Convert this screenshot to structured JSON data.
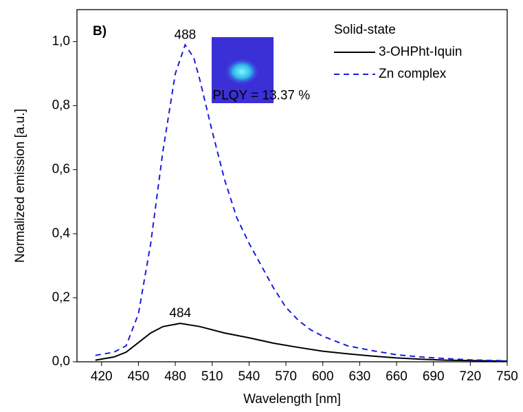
{
  "chart_data": {
    "type": "line",
    "panel_label": "B)",
    "xlabel": "Wavelength [nm]",
    "ylabel": "Normalized emission [a.u.]",
    "legend_title": "Solid-state",
    "legend": "upper right",
    "xlim": [
      400,
      750
    ],
    "xticks": [
      420,
      450,
      480,
      510,
      540,
      570,
      600,
      630,
      660,
      690,
      720,
      750
    ],
    "ylim": [
      0,
      1.1
    ],
    "yticks": [
      {
        "value": 0,
        "label": "0,0"
      },
      {
        "value": 0.2,
        "label": "0,2"
      },
      {
        "value": 0.4,
        "label": "0,4"
      },
      {
        "value": 0.6,
        "label": "0,6"
      },
      {
        "value": 0.8,
        "label": "0,8"
      },
      {
        "value": 1.0,
        "label": "1,0"
      }
    ],
    "series": [
      {
        "name": "3-OHPht-Iquin",
        "color": "#000000",
        "linestyle": "solid",
        "x": [
          415,
          430,
          440,
          450,
          460,
          470,
          484,
          500,
          520,
          540,
          560,
          580,
          600,
          620,
          640,
          660,
          680,
          700,
          750
        ],
        "values": [
          0.005,
          0.015,
          0.03,
          0.06,
          0.09,
          0.11,
          0.12,
          0.11,
          0.09,
          0.075,
          0.058,
          0.045,
          0.033,
          0.025,
          0.018,
          0.012,
          0.008,
          0.005,
          0.002
        ]
      },
      {
        "name": "Zn complex",
        "color": "#1a1adb",
        "linestyle": "dashed",
        "x": [
          415,
          430,
          440,
          450,
          460,
          470,
          480,
          488,
          495,
          500,
          510,
          520,
          530,
          540,
          550,
          560,
          570,
          580,
          590,
          600,
          620,
          640,
          660,
          680,
          700,
          720,
          750
        ],
        "values": [
          0.02,
          0.03,
          0.05,
          0.15,
          0.37,
          0.66,
          0.9,
          0.99,
          0.95,
          0.88,
          0.72,
          0.57,
          0.45,
          0.37,
          0.3,
          0.23,
          0.17,
          0.13,
          0.1,
          0.08,
          0.05,
          0.035,
          0.022,
          0.015,
          0.01,
          0.006,
          0.003
        ]
      }
    ],
    "annotations": [
      {
        "text": "488",
        "x": 488,
        "y": 1.02,
        "color": "#1a1adb"
      },
      {
        "text": "484",
        "x": 484,
        "y": 0.15,
        "color": "#000000"
      },
      {
        "text": "PLQY = 13.37 %",
        "x": 550,
        "y": 0.83,
        "color": "#000000"
      }
    ]
  }
}
